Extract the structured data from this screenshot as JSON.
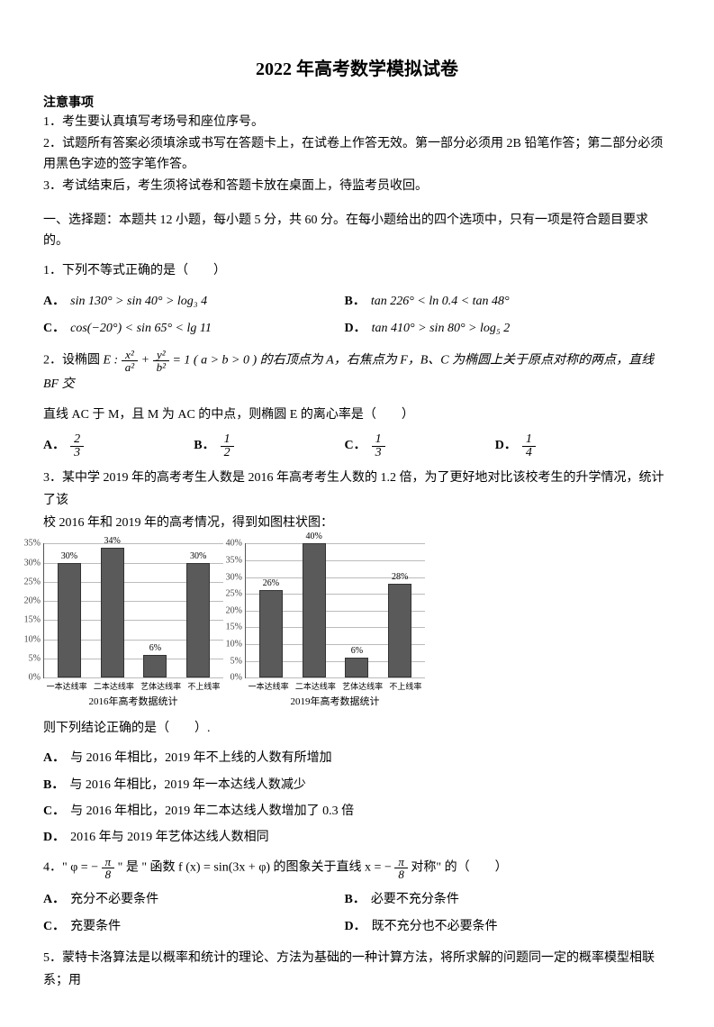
{
  "title": "2022 年高考数学模拟试卷",
  "notice_head": "注意事项",
  "notices": {
    "n1": "1．考生要认真填写考场号和座位序号。",
    "n2": "2．试题所有答案必须填涂或书写在答题卡上，在试卷上作答无效。第一部分必须用 2B 铅笔作答；第二部分必须用黑色字迹的签字笔作答。",
    "n3": "3．考试结束后，考生须将试卷和答题卡放在桌面上，待监考员收回。"
  },
  "section1": "一、选择题：本题共 12 小题，每小题 5 分，共 60 分。在每小题给出的四个选项中，只有一项是符合题目要求的。",
  "q1": {
    "stem": "1．下列不等式正确的是（　　）",
    "A": "sin 130° > sin 40° > log₃ 4",
    "B": "tan 226° < ln 0.4 < tan 48°",
    "C": "cos(−20°) < sin 65° < lg 11",
    "D": "tan 410° > sin 80° > log₅ 2"
  },
  "q2": {
    "stem_pre": "2．设椭圆 ",
    "ellipse_E": "E :",
    "stem_cond": " = 1 ( a > b > 0 ) 的右顶点为 A，右焦点为 F，B、C 为椭圆上关于原点对称的两点，直线 BF 交",
    "stem_line2": "直线 AC 于 M，且 M 为 AC 的中点，则椭圆 E 的离心率是（　　）",
    "A_n": "2",
    "A_d": "3",
    "B_n": "1",
    "B_d": "2",
    "C_n": "1",
    "C_d": "3",
    "D_n": "1",
    "D_d": "4"
  },
  "q3": {
    "stem1": "3．某中学 2019 年的高考考生人数是 2016 年高考考生人数的 1.2 倍，为了更好地对比该校考生的升学情况，统计了该",
    "stem2": "校 2016 年和 2019 年的高考情况，得到如图柱状图：",
    "chart1": {
      "ymax": 35,
      "ytick": 5,
      "categories": [
        "一本达线率",
        "二本达线率",
        "艺体达线率",
        "不上线率"
      ],
      "values": [
        30,
        34,
        6,
        30
      ],
      "labels": [
        "30%",
        "34%",
        "6%",
        "30%"
      ],
      "title": "2016年高考数据统计",
      "bar_color": "#5a5a5a"
    },
    "chart2": {
      "ymax": 40,
      "ytick": 5,
      "categories": [
        "一本达线率",
        "二本达线率",
        "艺体达线率",
        "不上线率"
      ],
      "values": [
        26,
        40,
        6,
        28
      ],
      "labels": [
        "26%",
        "40%",
        "6%",
        "28%"
      ],
      "title": "2019年高考数据统计",
      "bar_color": "#5a5a5a"
    },
    "after": "则下列结论正确的是（　　）.",
    "A": "与 2016 年相比，2019 年不上线的人数有所增加",
    "B": "与 2016 年相比，2019 年一本达线人数减少",
    "C": "与 2016 年相比，2019 年二本达线人数增加了 0.3 倍",
    "D": "2016 年与 2019 年艺体达线人数相同"
  },
  "q4": {
    "stem_pre": "4．\" φ = − ",
    "phi_n": "π",
    "phi_d": "8",
    "stem_mid1": " \" 是 \" 函数 f (x) = sin(3x + φ) 的图象关于直线 x = − ",
    "stem_mid2": " 对称\" 的（　　）",
    "A": "充分不必要条件",
    "B": "必要不充分条件",
    "C": "充要条件",
    "D": "既不充分也不必要条件"
  },
  "q5": {
    "stem": "5．蒙特卡洛算法是以概率和统计的理论、方法为基础的一种计算方法，将所求解的问题同一定的概率模型相联系；用"
  },
  "labels": {
    "A": "A．",
    "B": "B．",
    "C": "C．",
    "D": "D．"
  }
}
